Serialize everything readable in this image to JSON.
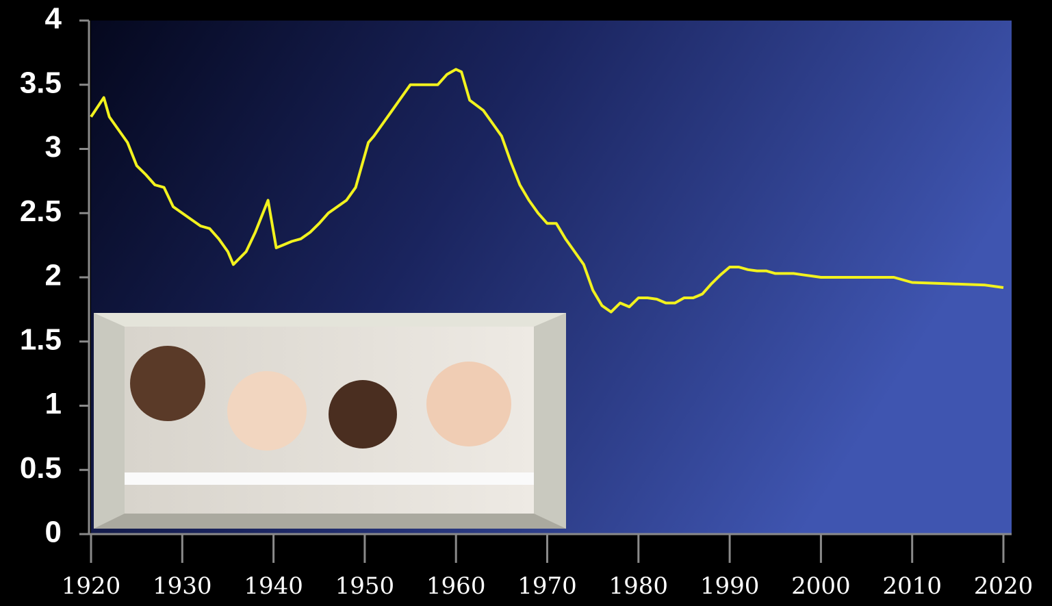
{
  "chart_data": {
    "type": "line",
    "x": [
      1920,
      1921.4,
      1922,
      1923,
      1924,
      1925,
      1926,
      1927,
      1928,
      1929,
      1930,
      1931,
      1932,
      1933,
      1934,
      1935,
      1935.6,
      1937,
      1938,
      1939.4,
      1940.3,
      1941,
      1942,
      1943,
      1944,
      1945,
      1946,
      1947,
      1948,
      1949,
      1950.4,
      1951,
      1952,
      1953,
      1954,
      1955,
      1956,
      1957,
      1958,
      1959,
      1960,
      1960.6,
      1961.5,
      1963,
      1964,
      1965,
      1966,
      1967,
      1968,
      1969,
      1970,
      1971,
      1972,
      1973,
      1974,
      1975,
      1976,
      1977,
      1978,
      1979,
      1980,
      1981,
      1982,
      1983,
      1984,
      1985,
      1986,
      1987,
      1988,
      1989,
      1990,
      1991,
      1992,
      1993,
      1994,
      1995,
      1996,
      1997,
      1998,
      1999,
      2000,
      2004,
      2008,
      2010,
      2014,
      2018,
      2020
    ],
    "values": [
      3.25,
      3.4,
      3.25,
      3.15,
      3.05,
      2.87,
      2.8,
      2.72,
      2.7,
      2.55,
      2.5,
      2.45,
      2.4,
      2.38,
      2.3,
      2.2,
      2.1,
      2.2,
      2.35,
      2.6,
      2.23,
      2.25,
      2.28,
      2.3,
      2.35,
      2.42,
      2.5,
      2.55,
      2.6,
      2.7,
      3.05,
      3.1,
      3.2,
      3.3,
      3.4,
      3.5,
      3.5,
      3.5,
      3.5,
      3.58,
      3.62,
      3.6,
      3.38,
      3.3,
      3.2,
      3.1,
      2.9,
      2.72,
      2.6,
      2.5,
      2.42,
      2.42,
      2.3,
      2.2,
      2.1,
      1.9,
      1.78,
      1.73,
      1.8,
      1.77,
      1.84,
      1.84,
      1.83,
      1.8,
      1.8,
      1.84,
      1.84,
      1.87,
      1.95,
      2.02,
      2.08,
      2.08,
      2.06,
      2.05,
      2.05,
      2.03,
      2.03,
      2.03,
      2.02,
      2.01,
      2.0,
      2.0,
      2.0,
      1.96,
      1.95,
      1.94,
      1.92
    ],
    "color": "#f2f21e",
    "xlim": [
      1920,
      2020
    ],
    "ylim": [
      0,
      4
    ],
    "xticks": [
      1920,
      1930,
      1940,
      1950,
      1960,
      1970,
      1980,
      1990,
      2000,
      2010,
      2020
    ],
    "yticks": [
      0,
      0.5,
      1,
      1.5,
      2,
      2.5,
      3,
      3.5,
      4
    ]
  }
}
